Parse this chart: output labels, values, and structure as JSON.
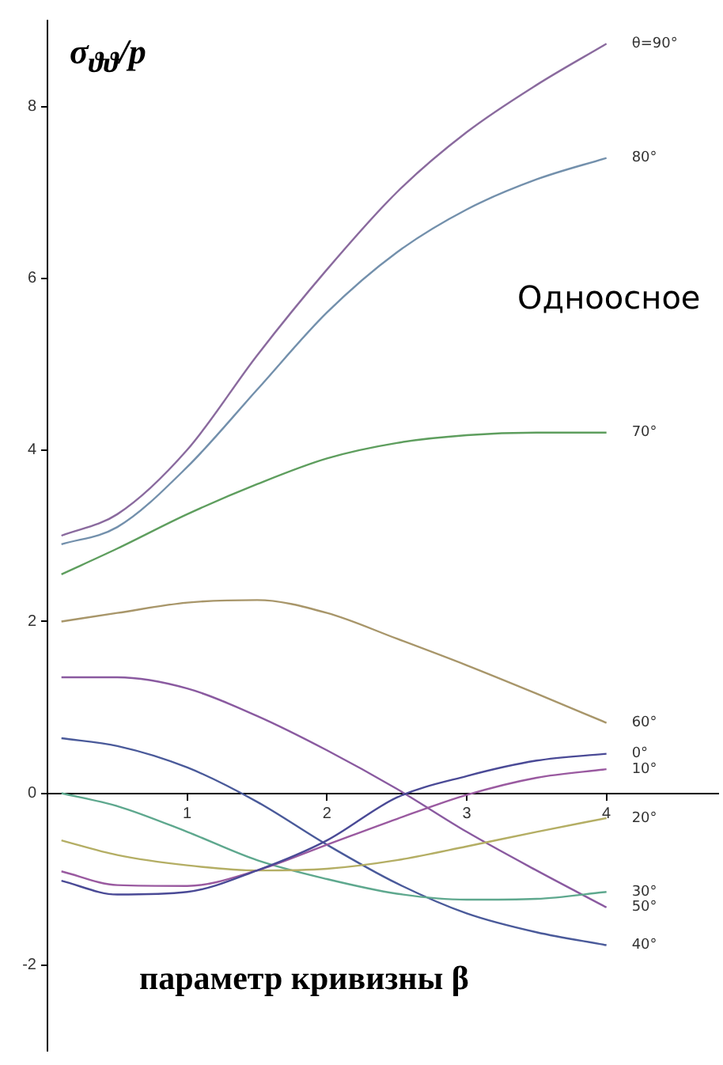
{
  "chart_data": {
    "type": "line",
    "ylabel": "σ$_{ϑϑ}$/p",
    "xlabel": "параметр кривизны β",
    "annotations": [
      "Одноосное"
    ],
    "x": [
      0.1,
      0.5,
      1,
      1.5,
      2,
      2.5,
      3,
      3.5,
      4
    ],
    "xlim": [
      0,
      4.8
    ],
    "ylim": [
      -3,
      9
    ],
    "xticks": [
      1,
      2,
      3,
      4
    ],
    "yticks": [
      -2,
      0,
      2,
      4,
      6,
      8
    ],
    "grid": false,
    "legend": false,
    "marker": "none",
    "line_style": "solid",
    "series": [
      {
        "name": "θ=90°",
        "color": "#8a6a9e",
        "values": [
          3.0,
          3.25,
          4.0,
          5.1,
          6.1,
          7.0,
          7.7,
          8.25,
          8.73
        ]
      },
      {
        "name": "80°",
        "color": "#7390ac",
        "values": [
          2.9,
          3.1,
          3.8,
          4.7,
          5.6,
          6.3,
          6.8,
          7.15,
          7.4
        ]
      },
      {
        "name": "70°",
        "color": "#5e9e5e",
        "values": [
          2.55,
          2.85,
          3.25,
          3.6,
          3.9,
          4.08,
          4.17,
          4.2,
          4.2
        ]
      },
      {
        "name": "60°",
        "color": "#a8966a",
        "values": [
          2.0,
          2.1,
          2.22,
          2.25,
          2.1,
          1.8,
          1.49,
          1.16,
          0.82
        ]
      },
      {
        "name": "0°",
        "color": "#4a4a96",
        "values": [
          -1.02,
          -1.18,
          -1.15,
          -0.9,
          -0.55,
          -0.05,
          0.2,
          0.38,
          0.46
        ]
      },
      {
        "name": "10°",
        "color": "#9a5aa0",
        "values": [
          -0.91,
          -1.07,
          -1.08,
          -0.9,
          -0.6,
          -0.3,
          -0.02,
          0.18,
          0.28
        ]
      },
      {
        "name": "20°",
        "color": "#b4ae64",
        "values": [
          -0.55,
          -0.72,
          -0.84,
          -0.9,
          -0.88,
          -0.78,
          -0.62,
          -0.45,
          -0.29
        ]
      },
      {
        "name": "30°",
        "color": "#5ea88e",
        "values": [
          0.0,
          -0.15,
          -0.45,
          -0.78,
          -1.0,
          -1.17,
          -1.24,
          -1.23,
          -1.15
        ]
      },
      {
        "name": "50°",
        "color": "#8a5aa0",
        "values": [
          1.35,
          1.35,
          1.22,
          0.9,
          0.5,
          0.05,
          -0.45,
          -0.9,
          -1.33
        ]
      },
      {
        "name": "40°",
        "color": "#4a5a9a",
        "values": [
          0.64,
          0.55,
          0.3,
          -0.1,
          -0.6,
          -1.05,
          -1.4,
          -1.62,
          -1.77
        ]
      }
    ]
  }
}
